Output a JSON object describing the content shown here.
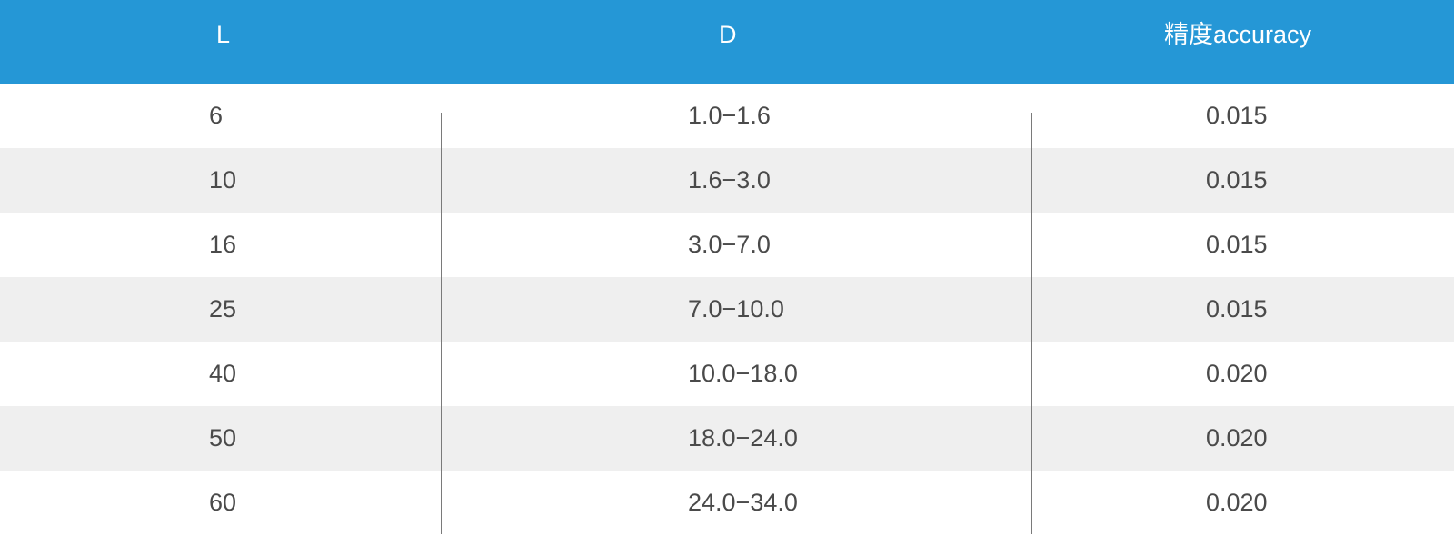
{
  "table": {
    "headers": [
      "L",
      "D",
      "精度accuracy"
    ],
    "rows": [
      [
        "6",
        "1.0−1.6",
        "0.015"
      ],
      [
        "10",
        "1.6−3.0",
        "0.015"
      ],
      [
        "16",
        "3.0−7.0",
        "0.015"
      ],
      [
        "25",
        "7.0−10.0",
        "0.015"
      ],
      [
        "40",
        "10.0−18.0",
        "0.020"
      ],
      [
        "50",
        "18.0−24.0",
        "0.020"
      ],
      [
        "60",
        "24.0−34.0",
        "0.020"
      ]
    ]
  },
  "colors": {
    "header_bg": "#2597d6",
    "header_text": "#ffffff",
    "row_alt_bg": "#efefef",
    "cell_text": "#4a4a4a",
    "divider": "#7a7a7a"
  }
}
